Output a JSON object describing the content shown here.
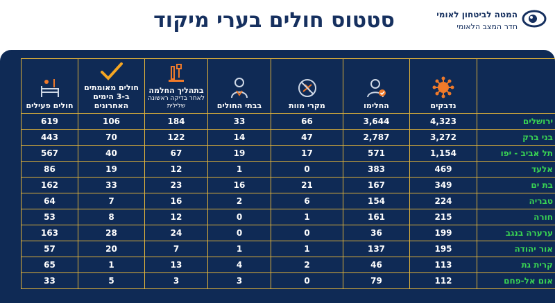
{
  "header": {
    "title": "סטטוס חולים בערי מיקוד",
    "org_name": "המטה לביטחון לאומי",
    "org_sub": "חדר המצב הלאומי"
  },
  "table": {
    "columns": [
      {
        "label": "נדבקים",
        "sub": "",
        "icon": "virus-icon"
      },
      {
        "label": "החלימו",
        "sub": "",
        "icon": "recovered-person-icon"
      },
      {
        "label": "מקרי מוות",
        "sub": "",
        "icon": "death-icon"
      },
      {
        "label": "בבתי החולים",
        "sub": "",
        "icon": "doctor-icon"
      },
      {
        "label": "בתהליך החלמה",
        "sub": "לאחר בדיקה ראשונה שלילית",
        "icon": "lab-test-icon"
      },
      {
        "label": "חולים מאומתים ב-3 הימים האחרונים",
        "sub": "",
        "icon": "checkmark-icon"
      },
      {
        "label": "חולים פעילים",
        "sub": "",
        "icon": "patient-bed-icon"
      }
    ],
    "rows": [
      {
        "city": "ירושלים",
        "values": [
          "4,323",
          "3,644",
          "66",
          "33",
          "184",
          "106",
          "619"
        ]
      },
      {
        "city": "בני ברק",
        "values": [
          "3,272",
          "2,787",
          "47",
          "14",
          "122",
          "70",
          "443"
        ]
      },
      {
        "city": "תל אביב - יפו",
        "values": [
          "1,154",
          "571",
          "17",
          "19",
          "67",
          "40",
          "567"
        ]
      },
      {
        "city": "אלעד",
        "values": [
          "469",
          "383",
          "0",
          "1",
          "12",
          "19",
          "86"
        ]
      },
      {
        "city": "בת ים",
        "values": [
          "349",
          "167",
          "21",
          "16",
          "23",
          "33",
          "162"
        ]
      },
      {
        "city": "טבריה",
        "values": [
          "224",
          "154",
          "6",
          "2",
          "16",
          "7",
          "64"
        ]
      },
      {
        "city": "חורה",
        "values": [
          "215",
          "161",
          "1",
          "0",
          "12",
          "8",
          "53"
        ]
      },
      {
        "city": "ערערה בנגב",
        "values": [
          "199",
          "36",
          "0",
          "0",
          "24",
          "28",
          "163"
        ]
      },
      {
        "city": "אור יהודה",
        "values": [
          "195",
          "137",
          "1",
          "1",
          "7",
          "20",
          "57"
        ]
      },
      {
        "city": "קרית גת",
        "values": [
          "113",
          "46",
          "2",
          "4",
          "13",
          "1",
          "65"
        ]
      },
      {
        "city": "אום אל-פחם",
        "values": [
          "112",
          "79",
          "0",
          "3",
          "3",
          "5",
          "33"
        ]
      }
    ]
  },
  "colors": {
    "panel": "#0f2a55",
    "border": "#e0b23a",
    "title": "#16305f",
    "city": "#39d353",
    "icon_orange": "#f07a2a",
    "check_orange": "#f5a623"
  }
}
